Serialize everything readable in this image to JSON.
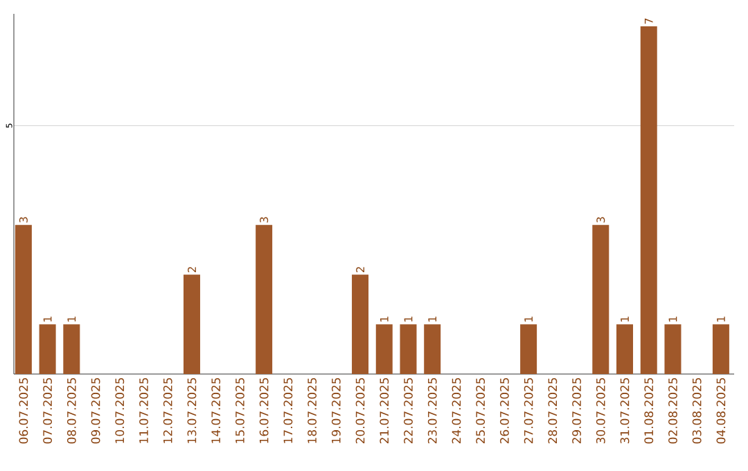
{
  "chart_data": {
    "type": "bar",
    "categories": [
      "06.07.2025",
      "07.07.2025",
      "08.07.2025",
      "09.07.2025",
      "10.07.2025",
      "11.07.2025",
      "12.07.2025",
      "13.07.2025",
      "14.07.2025",
      "15.07.2025",
      "16.07.2025",
      "17.07.2025",
      "18.07.2025",
      "19.07.2025",
      "20.07.2025",
      "21.07.2025",
      "22.07.2025",
      "23.07.2025",
      "24.07.2025",
      "25.07.2025",
      "26.07.2025",
      "27.07.2025",
      "28.07.2025",
      "29.07.2025",
      "30.07.2025",
      "31.07.2025",
      "01.08.2025",
      "02.08.2025",
      "03.08.2025",
      "04.08.2025"
    ],
    "values": [
      3,
      1,
      1,
      0,
      0,
      0,
      0,
      2,
      0,
      0,
      3,
      0,
      0,
      0,
      2,
      1,
      1,
      1,
      0,
      0,
      0,
      1,
      0,
      0,
      3,
      1,
      7,
      1,
      0,
      1
    ],
    "value_labels": [
      "3",
      "1",
      "1",
      null,
      null,
      null,
      null,
      "2",
      null,
      null,
      "3",
      null,
      null,
      null,
      "2",
      "1",
      "1",
      "1",
      null,
      null,
      null,
      "1",
      null,
      null,
      "3",
      "1",
      "7",
      "1",
      null,
      "1"
    ],
    "color": "#a0582a",
    "ylim": [
      0,
      7.25
    ],
    "yticks": [
      5
    ],
    "grid": "y"
  }
}
